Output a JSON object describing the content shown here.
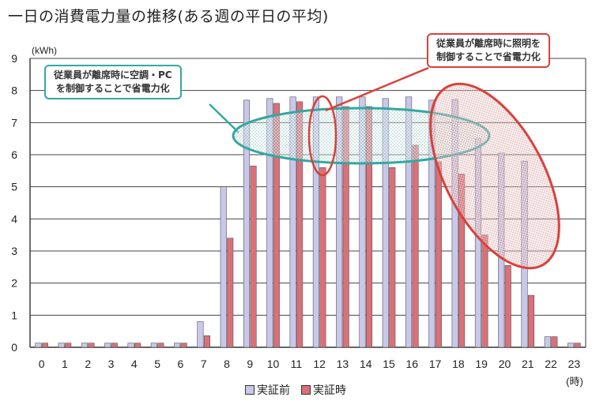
{
  "chart_data": {
    "type": "bar",
    "title": "一日の消費電力量の推移(ある週の平日の平均)",
    "y_unit": "(kWh)",
    "x_unit": "(時)",
    "ylim": [
      0,
      9
    ],
    "yticks": [
      0,
      1,
      2,
      3,
      4,
      5,
      6,
      7,
      8,
      9
    ],
    "grid": true,
    "legend_position": "bottom",
    "categories": [
      "0",
      "1",
      "2",
      "3",
      "4",
      "5",
      "6",
      "7",
      "8",
      "9",
      "10",
      "11",
      "12",
      "13",
      "14",
      "15",
      "16",
      "17",
      "18",
      "19",
      "20",
      "21",
      "22",
      "23"
    ],
    "series": [
      {
        "name": "実証前",
        "color": "#c9c8ea",
        "values": [
          0.13,
          0.13,
          0.13,
          0.13,
          0.13,
          0.13,
          0.13,
          0.8,
          5.0,
          7.7,
          7.75,
          7.8,
          7.8,
          7.8,
          7.8,
          7.75,
          7.8,
          7.7,
          7.72,
          6.5,
          6.05,
          5.8,
          0.33,
          0.13
        ]
      },
      {
        "name": "実証時",
        "color": "#d9707a",
        "values": [
          0.13,
          0.13,
          0.13,
          0.13,
          0.13,
          0.13,
          0.13,
          0.36,
          3.4,
          5.65,
          7.6,
          7.65,
          5.6,
          7.5,
          7.5,
          5.6,
          6.3,
          5.78,
          5.4,
          3.5,
          2.55,
          1.62,
          0.33,
          0.13
        ]
      }
    ],
    "annotations": [
      {
        "lines": [
          "従業員が離席時に空調・PC",
          "を制御することで省電力化"
        ],
        "color": "#34a7a2"
      },
      {
        "lines": [
          "従業員が離席時に照明を",
          "制御することで省電力化"
        ],
        "color": "#d9413a"
      }
    ]
  }
}
